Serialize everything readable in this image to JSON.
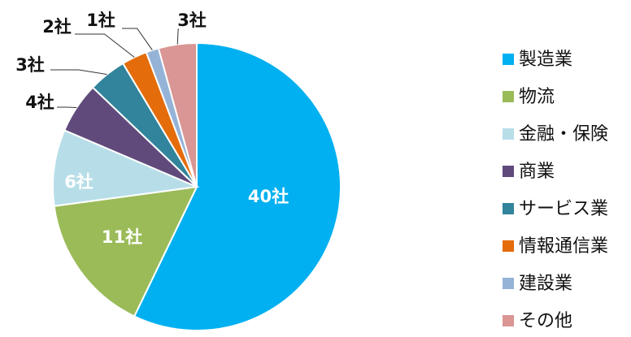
{
  "chart_data": {
    "type": "pie",
    "unit_suffix": "社",
    "slices": [
      {
        "label": "製造業",
        "value": 40,
        "color": "#00B0F0",
        "data_label": "40社"
      },
      {
        "label": "物流",
        "value": 11,
        "color": "#9BBB59",
        "data_label": "11社"
      },
      {
        "label": "金融・保険",
        "value": 6,
        "color": "#B7DEE8",
        "data_label": "6社"
      },
      {
        "label": "商業",
        "value": 4,
        "color": "#604A7B",
        "data_label": "4社"
      },
      {
        "label": "サービス業",
        "value": 3,
        "color": "#31849B",
        "data_label": "3社"
      },
      {
        "label": "情報通信業",
        "value": 2,
        "color": "#E46C0A",
        "data_label": "2社"
      },
      {
        "label": "建設業",
        "value": 1,
        "color": "#95B3D7",
        "data_label": "1社"
      },
      {
        "label": "その他",
        "value": 3,
        "color": "#D99694",
        "data_label": "3社"
      }
    ],
    "legend_placement": "right"
  }
}
